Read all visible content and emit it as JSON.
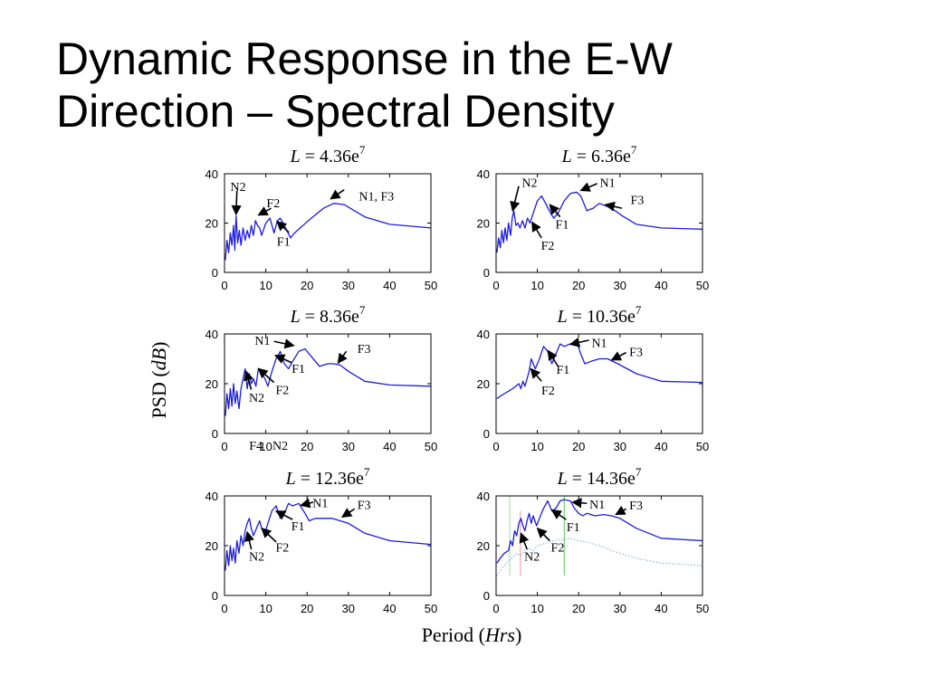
{
  "title_lines": [
    "Dynamic Response in the E-W",
    "Direction – Spectral Density"
  ],
  "chart_data": [
    {
      "type": "line",
      "title": {
        "italic": "L",
        "rest": " = 4.36e",
        "sup": "7"
      },
      "ylabel": {
        "plain": "PSD (",
        "italic": "dB",
        "close": ")"
      },
      "xlabel": {
        "plain": "Period (",
        "italic": "Hrs",
        "close": ")"
      },
      "xlim": [
        0,
        50
      ],
      "ylim": [
        0,
        40
      ],
      "xticks": [
        0,
        10,
        20,
        30,
        40,
        50
      ],
      "yticks": [
        0,
        20,
        40
      ],
      "series": [
        {
          "x": [
            0.2,
            0.6,
            1.0,
            1.4,
            1.8,
            2.2,
            2.5,
            2.8,
            3.2,
            3.6,
            4.0,
            4.5,
            5.0,
            5.5,
            6.0,
            6.5,
            7.0,
            7.5,
            8.0,
            8.5,
            9.0,
            10.0,
            11.0,
            12.0,
            12.8,
            13.5,
            14.5,
            16.0,
            17.0,
            19.0,
            21.0,
            24.0,
            26.5,
            29.0,
            34.0,
            40.0,
            50.0
          ],
          "y": [
            5,
            13,
            8,
            16,
            11,
            19,
            9,
            23,
            12,
            17,
            11,
            18,
            13,
            17,
            14,
            19,
            15,
            21,
            19,
            18,
            15,
            20,
            22,
            16,
            21,
            22,
            19,
            14,
            16,
            19,
            22,
            26,
            28,
            27.5,
            22.5,
            19.5,
            18
          ]
        }
      ],
      "labels": [
        {
          "text": "N2",
          "x": 3.3,
          "y": 34.8
        },
        {
          "text": "F2",
          "x": 11.8,
          "y": 28.2
        },
        {
          "text": "N1, F3",
          "x": 36.8,
          "y": 31.0
        },
        {
          "text": "F1",
          "x": 14.3,
          "y": 12.6
        }
      ],
      "arrows": [
        {
          "from": [
            3.0,
            33.0
          ],
          "to": [
            2.8,
            23.5
          ]
        },
        {
          "from": [
            11.3,
            26.0
          ],
          "to": [
            8.2,
            23.2
          ]
        },
        {
          "from": [
            29.0,
            33.5
          ],
          "to": [
            25.7,
            29.8
          ]
        },
        {
          "from": [
            15.6,
            16.2
          ],
          "to": [
            12.7,
            20.7
          ]
        }
      ]
    },
    {
      "type": "line",
      "title": {
        "italic": "L",
        "rest": " = 6.36e",
        "sup": "7"
      },
      "xlim": [
        0,
        50
      ],
      "ylim": [
        0,
        40
      ],
      "xticks": [
        0,
        10,
        20,
        30,
        40,
        50
      ],
      "yticks": [
        0,
        20,
        40
      ],
      "series": [
        {
          "x": [
            0.2,
            0.6,
            1.0,
            1.4,
            1.8,
            2.2,
            2.6,
            3.0,
            3.5,
            3.9,
            4.3,
            4.8,
            5.3,
            5.8,
            6.4,
            7.0,
            7.6,
            8.2,
            9.0,
            10.0,
            11.0,
            12.0,
            13.2,
            14.0,
            15.0,
            16.5,
            18.0,
            19.5,
            20.5,
            22.0,
            23.5,
            25.0,
            26.5,
            28.0,
            30.5,
            34.0,
            40.0,
            50.0
          ],
          "y": [
            8,
            14,
            10,
            17,
            12,
            18,
            13,
            20,
            15,
            22,
            25,
            19,
            20,
            18,
            21,
            18,
            22,
            20,
            24,
            29,
            31,
            28,
            24,
            22,
            24,
            29,
            32,
            32.5,
            31,
            25,
            26,
            28,
            27,
            26,
            23,
            19.5,
            18,
            17.5
          ]
        }
      ],
      "labels": [
        {
          "text": "N2",
          "x": 8.1,
          "y": 36.6
        },
        {
          "text": "N1",
          "x": 27.0,
          "y": 36.6
        },
        {
          "text": "F3",
          "x": 34.2,
          "y": 29.6
        },
        {
          "text": "F1",
          "x": 16.0,
          "y": 19.6
        },
        {
          "text": "F2",
          "x": 12.5,
          "y": 11.0
        }
      ],
      "arrows": [
        {
          "from": [
            5.5,
            35.0
          ],
          "to": [
            4.0,
            25.0
          ]
        },
        {
          "from": [
            24.5,
            36.0
          ],
          "to": [
            20.5,
            33.2
          ]
        },
        {
          "from": [
            30.5,
            26.0
          ],
          "to": [
            26.5,
            27.5
          ]
        },
        {
          "from": [
            15.5,
            22.5
          ],
          "to": [
            13.0,
            27.5
          ]
        },
        {
          "from": [
            11.0,
            14.0
          ],
          "to": [
            8.7,
            20.4
          ]
        }
      ]
    },
    {
      "type": "line",
      "title": {
        "italic": "L",
        "rest": " = 8.36e",
        "sup": "7"
      },
      "xlim": [
        0,
        50
      ],
      "ylim": [
        0,
        40
      ],
      "xticks": [
        0,
        10,
        20,
        30,
        40,
        50
      ],
      "yticks": [
        0,
        20,
        40
      ],
      "series": [
        {
          "x": [
            0.2,
            0.6,
            1.0,
            1.4,
            1.8,
            2.2,
            2.6,
            3.0,
            3.5,
            4.0,
            4.5,
            5.0,
            5.5,
            6.0,
            6.5,
            7.0,
            7.6,
            8.2,
            9.0,
            9.8,
            10.5,
            11.5,
            12.5,
            13.5,
            14.5,
            15.5,
            16.5,
            18.0,
            19.5,
            21.0,
            23.0,
            25.0,
            26.5,
            28.0,
            30.0,
            34.0,
            40.0,
            50.0
          ],
          "y": [
            7,
            16,
            10,
            18,
            11,
            20,
            12,
            17,
            10,
            18,
            22,
            26,
            18,
            24,
            20,
            22,
            19,
            26,
            24,
            22,
            19,
            25,
            30,
            33,
            28,
            26,
            29,
            33,
            34,
            31,
            27,
            28,
            28,
            27.5,
            25,
            21,
            19.5,
            19
          ]
        }
      ],
      "labels": [
        {
          "text": "N1",
          "x": 9.2,
          "y": 37.4
        },
        {
          "text": "F3",
          "x": 33.8,
          "y": 34.1
        },
        {
          "text": "F1",
          "x": 17.9,
          "y": 26.1
        },
        {
          "text": "F2",
          "x": 14.0,
          "y": 17.6
        },
        {
          "text": "N2",
          "x": 7.8,
          "y": 14.6
        },
        {
          "text": "F4",
          "x": 7.6,
          "y": -4.7
        },
        {
          "text": "N2",
          "x": 13.5,
          "y": -4.7
        }
      ],
      "arrows": [
        {
          "from": [
            12.0,
            37.0
          ],
          "to": [
            16.8,
            35.3
          ]
        },
        {
          "from": [
            29.5,
            33.0
          ],
          "to": [
            27.5,
            28.3
          ]
        },
        {
          "from": [
            16.2,
            28.5
          ],
          "to": [
            12.3,
            31.4
          ]
        },
        {
          "from": [
            12.0,
            20.5
          ],
          "to": [
            8.2,
            26.1
          ]
        },
        {
          "from": [
            6.5,
            17.6
          ],
          "to": [
            5.2,
            25.0
          ]
        }
      ]
    },
    {
      "type": "line",
      "title": {
        "italic": "L",
        "rest": " = 10.36e",
        "sup": "7"
      },
      "xlim": [
        0,
        50
      ],
      "ylim": [
        0,
        40
      ],
      "xticks": [
        0,
        10,
        20,
        30,
        40,
        50
      ],
      "yticks": [
        0,
        20,
        40
      ],
      "series": [
        {
          "x": [
            0.2,
            1.0,
            2.0,
            3.0,
            4.0,
            4.8,
            5.5,
            6.0,
            6.5,
            7.0,
            7.5,
            8.0,
            8.5,
            9.0,
            9.5,
            10.5,
            11.5,
            12.5,
            13.5,
            14.5,
            15.5,
            16.5,
            18.0,
            19.5,
            20.5,
            21.5,
            23.0,
            25.0,
            27.0,
            29.5,
            34.0,
            40.0,
            50.0
          ],
          "y": [
            14,
            15,
            16,
            17,
            18,
            19,
            20,
            18,
            21,
            19,
            22,
            25,
            30,
            28,
            26,
            30,
            35,
            33,
            28,
            32,
            36,
            35,
            36,
            37,
            32,
            28,
            29,
            30,
            30,
            28,
            24,
            21,
            20.5
          ]
        }
      ],
      "labels": [
        {
          "text": "N1",
          "x": 25.0,
          "y": 36.6
        },
        {
          "text": "F3",
          "x": 33.9,
          "y": 32.9
        },
        {
          "text": "F1",
          "x": 16.2,
          "y": 25.8
        },
        {
          "text": "F2",
          "x": 12.6,
          "y": 17.5
        }
      ],
      "arrows": [
        {
          "from": [
            22.5,
            37.5
          ],
          "to": [
            18.0,
            35.8
          ]
        },
        {
          "from": [
            31.5,
            32.5
          ],
          "to": [
            28.0,
            29.5
          ]
        },
        {
          "from": [
            15.0,
            27.0
          ],
          "to": [
            12.6,
            33.3
          ]
        },
        {
          "from": [
            11.0,
            21.0
          ],
          "to": [
            8.4,
            26.0
          ]
        }
      ]
    },
    {
      "type": "line",
      "title": {
        "italic": "L",
        "rest": " = 12.36e",
        "sup": "7"
      },
      "xlim": [
        0,
        50
      ],
      "ylim": [
        0,
        40
      ],
      "xticks": [
        0,
        10,
        20,
        30,
        40,
        50
      ],
      "yticks": [
        0,
        20,
        40
      ],
      "series": [
        {
          "x": [
            0.2,
            0.6,
            1.0,
            1.4,
            1.8,
            2.2,
            2.6,
            3.0,
            3.5,
            4.0,
            4.5,
            5.0,
            5.5,
            6.0,
            6.5,
            7.0,
            7.5,
            8.0,
            8.5,
            9.0,
            9.8,
            10.5,
            11.5,
            12.5,
            13.5,
            14.5,
            15.5,
            16.5,
            18.0,
            19.5,
            20.5,
            22.0,
            24.0,
            26.0,
            28.0,
            30.0,
            34.0,
            40.0,
            50.0
          ],
          "y": [
            10,
            18,
            12,
            20,
            14,
            19,
            13,
            22,
            17,
            24,
            20,
            26,
            29,
            31,
            27,
            24,
            26,
            28,
            30,
            27,
            25,
            29,
            34,
            36,
            31,
            33,
            37,
            36,
            37,
            33,
            30,
            31,
            31,
            31,
            30,
            29,
            25,
            22,
            20.5
          ]
        }
      ],
      "labels": [
        {
          "text": "N1",
          "x": 23.2,
          "y": 37.3
        },
        {
          "text": "F3",
          "x": 33.8,
          "y": 36.6
        },
        {
          "text": "F1",
          "x": 17.8,
          "y": 28.0
        },
        {
          "text": "F2",
          "x": 14.0,
          "y": 19.4
        },
        {
          "text": "N2",
          "x": 7.8,
          "y": 15.8
        }
      ],
      "arrows": [
        {
          "from": [
            21.5,
            37.5
          ],
          "to": [
            18.5,
            36.2
          ]
        },
        {
          "from": [
            31.5,
            34.8
          ],
          "to": [
            28.5,
            31.5
          ]
        },
        {
          "from": [
            16.5,
            30.5
          ],
          "to": [
            12.5,
            33.9
          ]
        },
        {
          "from": [
            12.5,
            21.5
          ],
          "to": [
            9.0,
            27.0
          ]
        },
        {
          "from": [
            6.5,
            18.5
          ],
          "to": [
            5.5,
            25.5
          ]
        }
      ]
    },
    {
      "type": "line",
      "title": {
        "italic": "L",
        "rest": " = 14.36e",
        "sup": "7"
      },
      "xlim": [
        0,
        50
      ],
      "ylim": [
        0,
        40
      ],
      "xticks": [
        0,
        10,
        20,
        30,
        40,
        50
      ],
      "yticks": [
        0,
        20,
        40
      ],
      "series": [
        {
          "x": [
            0.2,
            1.0,
            2.0,
            3.0,
            3.5,
            4.0,
            4.5,
            5.0,
            5.5,
            6.0,
            6.5,
            7.0,
            7.5,
            8.0,
            8.5,
            9.0,
            9.8,
            10.5,
            11.5,
            12.5,
            13.5,
            14.5,
            15.5,
            16.5,
            18.0,
            19.0,
            20.0,
            21.0,
            22.0,
            24.0,
            26.0,
            28.0,
            30.0,
            34.0,
            40.0,
            50.0
          ],
          "y": [
            13,
            15,
            17,
            18,
            22,
            20,
            26,
            24,
            29,
            31,
            28,
            26,
            30,
            33,
            29,
            32,
            28,
            31,
            35,
            38,
            34,
            35,
            38,
            38.5,
            38,
            35,
            33,
            32,
            33,
            32,
            32.5,
            32,
            31,
            27,
            23,
            22
          ],
          "color": "#1b1be0"
        },
        {
          "x": [
            0.2,
            1.0,
            2.0,
            3.0,
            4.0,
            5.0,
            6.0,
            7.0,
            8.0,
            9.0,
            10.0,
            12.0,
            14.0,
            16.0,
            18.0,
            20.0,
            22.0,
            24.0,
            26.0,
            28.0,
            30.0,
            34.0,
            40.0,
            50.0
          ],
          "y": [
            8,
            10,
            12,
            14,
            15,
            17,
            16,
            18,
            19,
            18,
            20,
            21,
            22,
            22.5,
            23,
            22,
            21.5,
            20.5,
            19.5,
            18,
            17,
            15,
            13,
            12
          ],
          "color": "#7da1d6",
          "dotted": true
        }
      ],
      "vlines": [
        {
          "x": 3.3,
          "y0": 8,
          "y1": 40,
          "color": "#9fd7a0"
        },
        {
          "x": 5.9,
          "y0": 8,
          "y1": 34,
          "color": "#e49a9a"
        },
        {
          "x": 16.5,
          "y0": 8,
          "y1": 40,
          "color": "#5fc35f"
        }
      ],
      "labels": [
        {
          "text": "N1",
          "x": 24.5,
          "y": 36.8
        },
        {
          "text": "F3",
          "x": 33.9,
          "y": 36.3
        },
        {
          "text": "F1",
          "x": 18.7,
          "y": 27.6
        },
        {
          "text": "F2",
          "x": 14.9,
          "y": 19.5
        },
        {
          "text": "N2",
          "x": 8.7,
          "y": 15.8
        }
      ],
      "arrows": [
        {
          "from": [
            22.0,
            37.0
          ],
          "to": [
            18.5,
            37.5
          ]
        },
        {
          "from": [
            31.5,
            34.8
          ],
          "to": [
            29.0,
            32.5
          ]
        },
        {
          "from": [
            17.0,
            30.5
          ],
          "to": [
            13.5,
            34.3
          ]
        },
        {
          "from": [
            13.0,
            22.0
          ],
          "to": [
            10.0,
            27.0
          ]
        },
        {
          "from": [
            7.5,
            18.5
          ],
          "to": [
            6.0,
            25.0
          ]
        }
      ]
    }
  ]
}
